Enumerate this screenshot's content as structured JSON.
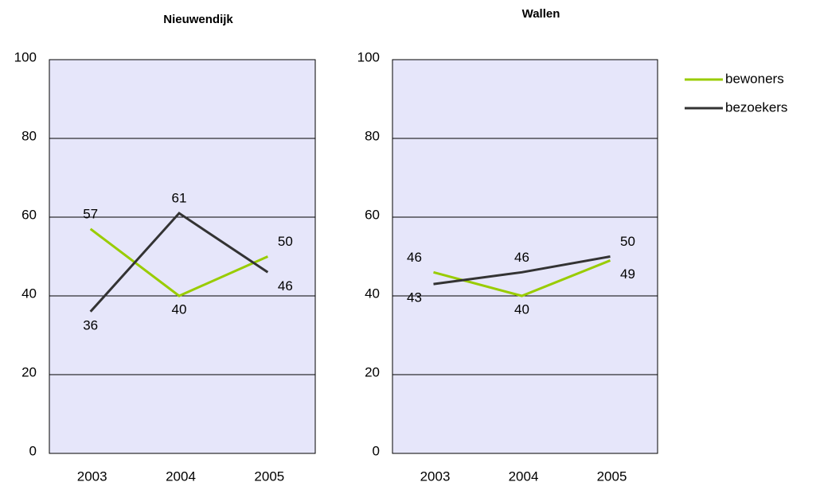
{
  "chart_data": [
    {
      "type": "line",
      "title": "Nieuwendijk",
      "categories": [
        "2003",
        "2004",
        "2005"
      ],
      "series": [
        {
          "name": "bewoners",
          "color": "#99cc00",
          "values": [
            57,
            40,
            50
          ]
        },
        {
          "name": "bezoekers",
          "color": "#333333",
          "values": [
            36,
            61,
            46
          ]
        }
      ],
      "ylim": [
        0,
        100
      ],
      "yticks": [
        0,
        20,
        40,
        60,
        80,
        100
      ],
      "grid": true
    },
    {
      "type": "line",
      "title": "Wallen",
      "categories": [
        "2003",
        "2004",
        "2005"
      ],
      "series": [
        {
          "name": "bewoners",
          "color": "#99cc00",
          "values": [
            46,
            40,
            49
          ]
        },
        {
          "name": "bezoekers",
          "color": "#333333",
          "values": [
            43,
            46,
            50
          ]
        }
      ],
      "ylim": [
        0,
        100
      ],
      "yticks": [
        0,
        20,
        40,
        60,
        80,
        100
      ],
      "grid": true,
      "legend": "right"
    }
  ]
}
